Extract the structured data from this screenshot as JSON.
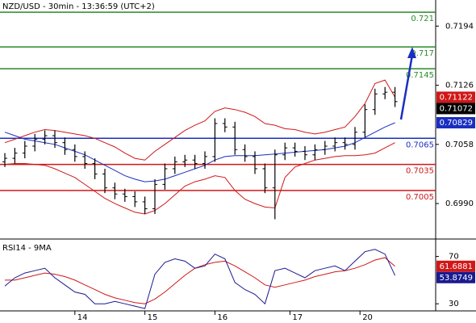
{
  "chart_data": [
    {
      "type": "ohlc",
      "title": "NZD/USD - 30min - 13:36:59 (UTC+2)",
      "color": "#000000",
      "open": [
        0.7038,
        0.7042,
        0.7048,
        0.7056,
        0.7064,
        0.7068,
        0.706,
        0.7052,
        0.7044,
        0.7036,
        0.7024,
        0.7008,
        0.7001,
        0.6998,
        0.6992,
        0.6984,
        0.7012,
        0.703,
        0.7038,
        0.704,
        0.7036,
        0.7044,
        0.7082,
        0.7078,
        0.7052,
        0.7044,
        0.703,
        0.7008,
        0.7046,
        0.7054,
        0.705,
        0.7046,
        0.7052,
        0.7056,
        0.706,
        0.7058,
        0.7072,
        0.7098,
        0.7116,
        0.7118
      ],
      "high": [
        0.7048,
        0.7054,
        0.7062,
        0.707,
        0.7074,
        0.7074,
        0.7066,
        0.7058,
        0.705,
        0.7042,
        0.703,
        0.7014,
        0.7007,
        0.7004,
        0.6998,
        0.7018,
        0.7036,
        0.7044,
        0.7046,
        0.7046,
        0.705,
        0.7088,
        0.7088,
        0.7084,
        0.7058,
        0.705,
        0.7036,
        0.7052,
        0.706,
        0.706,
        0.7056,
        0.7058,
        0.7062,
        0.7066,
        0.7066,
        0.7078,
        0.7104,
        0.7122,
        0.7124,
        0.7124
      ],
      "low": [
        0.7032,
        0.7036,
        0.7042,
        0.705,
        0.7058,
        0.7054,
        0.7046,
        0.7038,
        0.703,
        0.7018,
        0.7002,
        0.6995,
        0.6992,
        0.6986,
        0.6978,
        0.6978,
        0.7006,
        0.7024,
        0.7032,
        0.703,
        0.703,
        0.7038,
        0.7072,
        0.7046,
        0.7038,
        0.7024,
        0.7002,
        0.6972,
        0.704,
        0.7044,
        0.704,
        0.704,
        0.7046,
        0.705,
        0.7052,
        0.7052,
        0.7066,
        0.7092,
        0.711,
        0.7101
      ],
      "close": [
        0.7042,
        0.7048,
        0.7056,
        0.7064,
        0.7068,
        0.706,
        0.7052,
        0.7044,
        0.7036,
        0.7024,
        0.7008,
        0.7001,
        0.6998,
        0.6992,
        0.6984,
        0.7012,
        0.703,
        0.7038,
        0.704,
        0.7036,
        0.7044,
        0.7082,
        0.7078,
        0.7052,
        0.7044,
        0.703,
        0.7008,
        0.7046,
        0.7054,
        0.705,
        0.7046,
        0.7052,
        0.7056,
        0.706,
        0.7058,
        0.7072,
        0.7098,
        0.7116,
        0.7118,
        0.71072
      ],
      "bands": {
        "color": "#d01818",
        "upper": [
          0.706,
          0.7064,
          0.7068,
          0.7072,
          0.7075,
          0.7074,
          0.7072,
          0.707,
          0.7068,
          0.7065,
          0.706,
          0.7055,
          0.7048,
          0.7042,
          0.704,
          0.705,
          0.7058,
          0.7066,
          0.7074,
          0.708,
          0.7085,
          0.7096,
          0.71,
          0.7098,
          0.7095,
          0.709,
          0.7082,
          0.708,
          0.7076,
          0.7075,
          0.7072,
          0.707,
          0.7072,
          0.7075,
          0.7078,
          0.709,
          0.7105,
          0.7128,
          0.7132,
          0.71122
        ],
        "lower": [
          0.7035,
          0.7036,
          0.7036,
          0.7035,
          0.7034,
          0.703,
          0.7025,
          0.702,
          0.7012,
          0.7004,
          0.6996,
          0.699,
          0.6985,
          0.698,
          0.6978,
          0.6982,
          0.699,
          0.7,
          0.701,
          0.7015,
          0.7018,
          0.7022,
          0.702,
          0.7005,
          0.6995,
          0.699,
          0.6986,
          0.6985,
          0.702,
          0.7032,
          0.7036,
          0.704,
          0.7042,
          0.7044,
          0.7045,
          0.7045,
          0.7046,
          0.7048,
          0.7054,
          0.706
        ]
      },
      "ma": {
        "color": "#1a2fc0",
        "values": [
          0.7072,
          0.7068,
          0.7064,
          0.7062,
          0.706,
          0.7058,
          0.7054,
          0.705,
          0.7046,
          0.704,
          0.7034,
          0.7028,
          0.7022,
          0.7018,
          0.7015,
          0.7016,
          0.7018,
          0.7022,
          0.7026,
          0.703,
          0.7034,
          0.704,
          0.7044,
          0.7045,
          0.7045,
          0.7045,
          0.7046,
          0.7047,
          0.7048,
          0.7049,
          0.705,
          0.7051,
          0.7052,
          0.7054,
          0.7056,
          0.706,
          0.7066,
          0.7072,
          0.7078,
          0.70829
        ]
      },
      "levels": [
        {
          "value": 0.721,
          "color": "#2a8a2a"
        },
        {
          "value": 0.717,
          "color": "#2a8a2a"
        },
        {
          "value": 0.7145,
          "color": "#2a8a2a"
        },
        {
          "value": 0.7065,
          "color": "#1a2fc0"
        },
        {
          "value": 0.7035,
          "color": "#d01818"
        },
        {
          "value": 0.7005,
          "color": "#d01818"
        }
      ],
      "ylim": [
        0.6952,
        0.7224
      ],
      "yticks": [
        {
          "value": 0.699,
          "label": "0.6990"
        },
        0.7058,
        0.7126,
        0.7194
      ]
    },
    {
      "type": "line",
      "title": "RSI14 - 9MA",
      "series": [
        {
          "color": "#1a1a90",
          "values": [
            45,
            52,
            56,
            58,
            60,
            52,
            46,
            40,
            38,
            30,
            30,
            32,
            30,
            28,
            26,
            55,
            65,
            68,
            66,
            60,
            62,
            72,
            68,
            48,
            42,
            38,
            30,
            58,
            60,
            56,
            52,
            58,
            60,
            62,
            58,
            66,
            74,
            76,
            72,
            53.8749
          ]
        },
        {
          "color": "#d01818",
          "values": [
            50,
            50,
            52,
            54,
            56,
            55,
            53,
            50,
            46,
            42,
            38,
            35,
            33,
            31,
            30,
            34,
            40,
            47,
            54,
            60,
            63,
            65,
            66,
            62,
            57,
            52,
            46,
            44,
            46,
            48,
            50,
            53,
            55,
            57,
            58,
            60,
            63,
            67,
            69,
            61.6881
          ]
        }
      ],
      "ylim": [
        24,
        82
      ],
      "yticks": [
        30,
        70
      ],
      "xticks": [
        {
          "value": 7,
          "label": "14"
        },
        {
          "value": 14,
          "label": "15"
        },
        {
          "value": 21,
          "label": "16"
        },
        {
          "value": 28.5,
          "label": "17"
        },
        {
          "value": 35.5,
          "label": "20"
        }
      ]
    }
  ]
}
